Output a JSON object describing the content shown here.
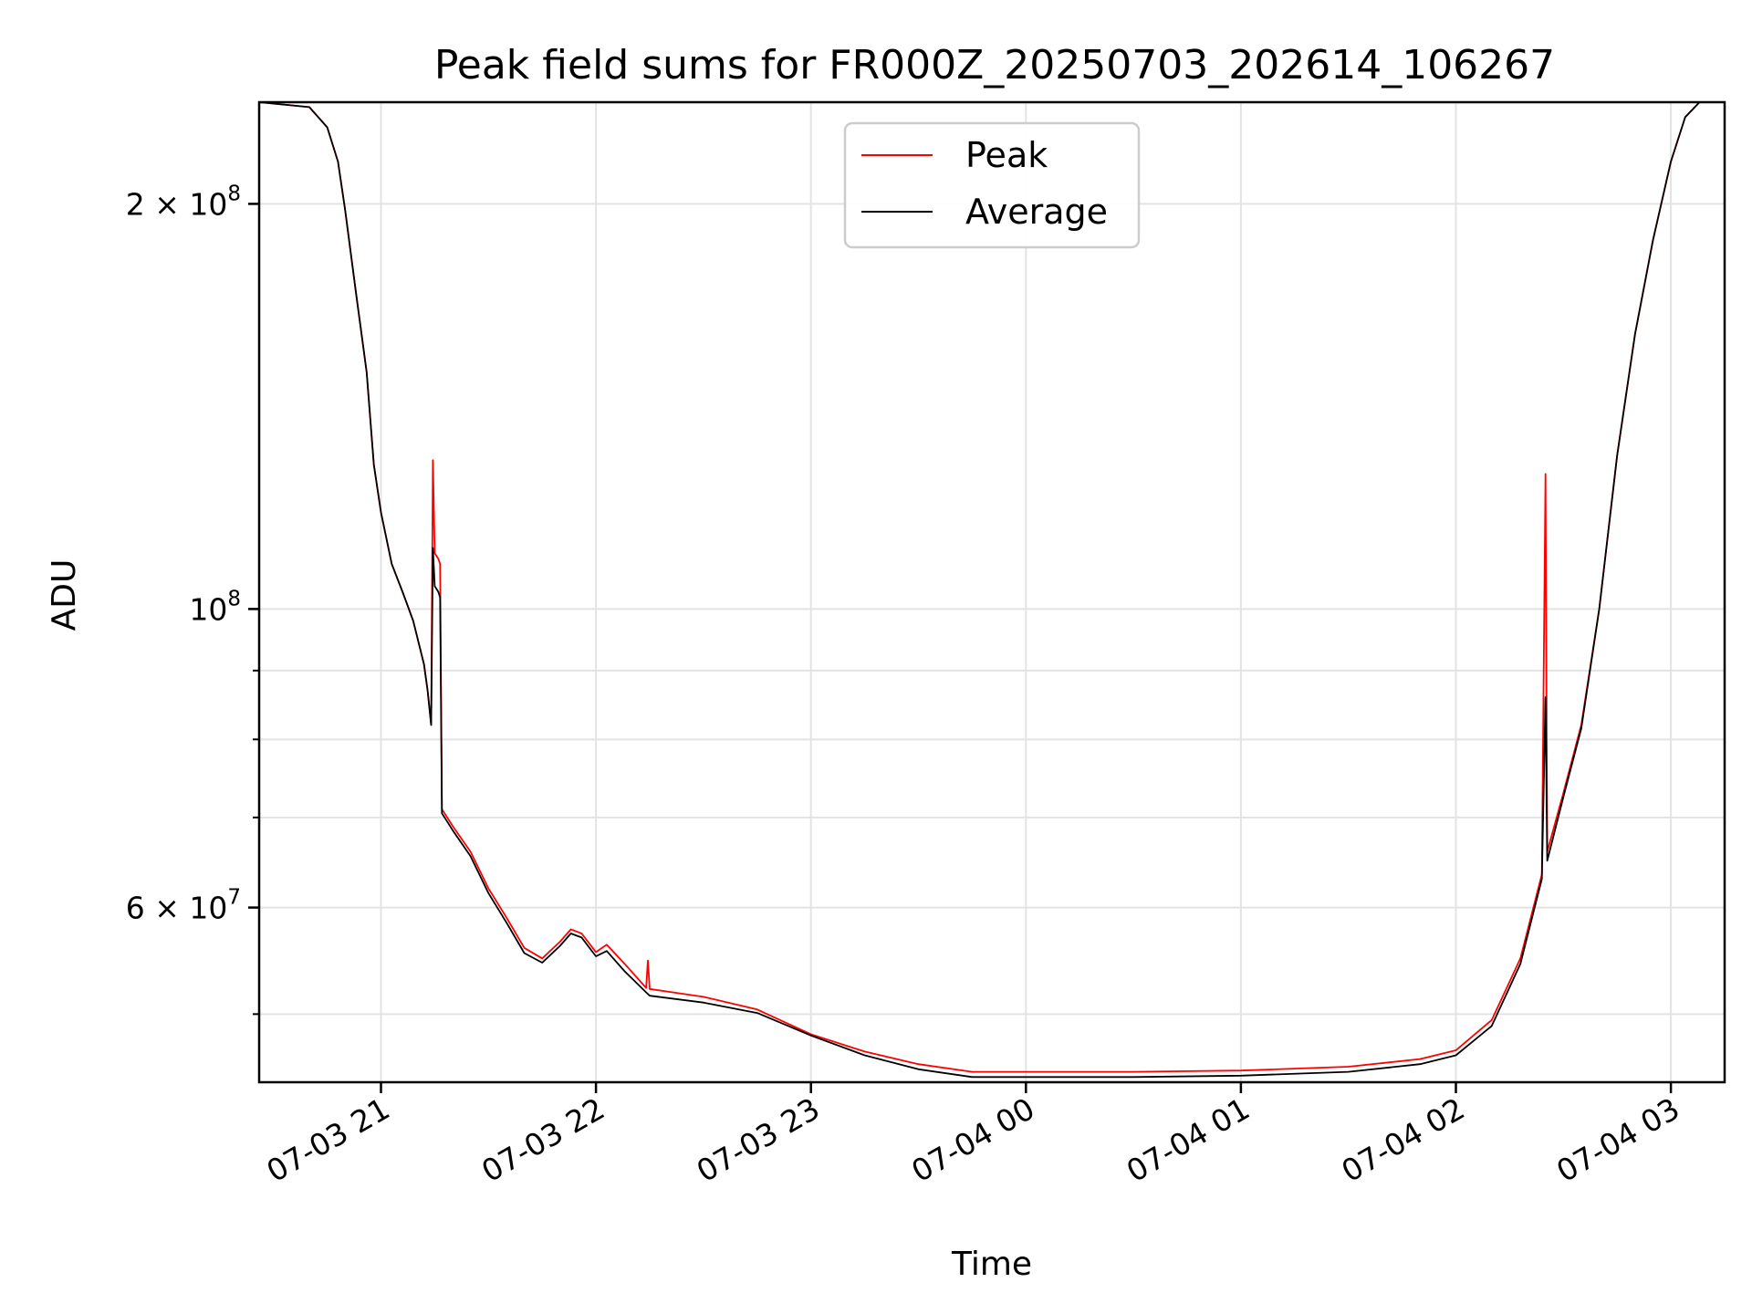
{
  "chart_data": {
    "type": "line",
    "title": "Peak field sums for FR000Z_20250703_202614_106267",
    "xlabel": "Time",
    "ylabel": "ADU",
    "y_scale": "log",
    "xlim": [
      "2025-07-03 20:26",
      "2025-07-04 03:15"
    ],
    "ylim": [
      44500000,
      238000000
    ],
    "grid": true,
    "legend_position": "top-center",
    "x_ticks": [
      {
        "value": "2025-07-03 21:00",
        "label": "07-03 21"
      },
      {
        "value": "2025-07-03 22:00",
        "label": "07-03 22"
      },
      {
        "value": "2025-07-03 23:00",
        "label": "07-03 23"
      },
      {
        "value": "2025-07-04 00:00",
        "label": "07-04 00"
      },
      {
        "value": "2025-07-04 01:00",
        "label": "07-04 01"
      },
      {
        "value": "2025-07-04 02:00",
        "label": "07-04 02"
      },
      {
        "value": "2025-07-04 03:00",
        "label": "07-04 03"
      }
    ],
    "y_ticks_major": [
      {
        "value": 200000000,
        "base": "2 × 10",
        "exp": "8"
      },
      {
        "value": 100000000,
        "base": "10",
        "exp": "8"
      },
      {
        "value": 60000000,
        "base": "6 × 10",
        "exp": "7"
      }
    ],
    "y_ticks_minor": [
      50000000,
      70000000,
      80000000,
      90000000
    ],
    "series": [
      {
        "name": "Peak",
        "color": "#ff0000",
        "points": [
          [
            "2025-07-03 20:26",
            238000000
          ],
          [
            "2025-07-03 20:40",
            236000000
          ],
          [
            "2025-07-03 20:45",
            228000000
          ],
          [
            "2025-07-03 20:48",
            215000000
          ],
          [
            "2025-07-03 20:50",
            198000000
          ],
          [
            "2025-07-03 20:53",
            172000000
          ],
          [
            "2025-07-03 20:56",
            150000000
          ],
          [
            "2025-07-03 20:58",
            128000000
          ],
          [
            "2025-07-03 21:00",
            118000000
          ],
          [
            "2025-07-03 21:03",
            108000000
          ],
          [
            "2025-07-03 21:06",
            103000000
          ],
          [
            "2025-07-03 21:09",
            98000000
          ],
          [
            "2025-07-03 21:12",
            91000000
          ],
          [
            "2025-07-03 21:13",
            87000000
          ],
          [
            "2025-07-03 21:14",
            82000000
          ],
          [
            "2025-07-03 21:14.5",
            129000000
          ],
          [
            "2025-07-03 21:15",
            110000000
          ],
          [
            "2025-07-03 21:16",
            109000000
          ],
          [
            "2025-07-03 21:16.5",
            108000000
          ],
          [
            "2025-07-03 21:17",
            71000000
          ],
          [
            "2025-07-03 21:20",
            69000000
          ],
          [
            "2025-07-03 21:25",
            66000000
          ],
          [
            "2025-07-03 21:30",
            62000000
          ],
          [
            "2025-07-03 21:35",
            59000000
          ],
          [
            "2025-07-03 21:40",
            56000000
          ],
          [
            "2025-07-03 21:45",
            55000000
          ],
          [
            "2025-07-03 21:50",
            56600000
          ],
          [
            "2025-07-03 21:53",
            57800000
          ],
          [
            "2025-07-03 21:56",
            57400000
          ],
          [
            "2025-07-03 22:00",
            55600000
          ],
          [
            "2025-07-03 22:03",
            56300000
          ],
          [
            "2025-07-03 22:08",
            54500000
          ],
          [
            "2025-07-03 22:14",
            52300000
          ],
          [
            "2025-07-03 22:14.5",
            54800000
          ],
          [
            "2025-07-03 22:15",
            52200000
          ],
          [
            "2025-07-03 22:30",
            51500000
          ],
          [
            "2025-07-03 22:45",
            50400000
          ],
          [
            "2025-07-03 23:00",
            48300000
          ],
          [
            "2025-07-03 23:15",
            46900000
          ],
          [
            "2025-07-03 23:30",
            45900000
          ],
          [
            "2025-07-03 23:45",
            45300000
          ],
          [
            "2025-07-04 00:00",
            45300000
          ],
          [
            "2025-07-04 00:30",
            45300000
          ],
          [
            "2025-07-04 01:00",
            45400000
          ],
          [
            "2025-07-04 01:30",
            45700000
          ],
          [
            "2025-07-04 01:50",
            46300000
          ],
          [
            "2025-07-04 02:00",
            47000000
          ],
          [
            "2025-07-04 02:10",
            49500000
          ],
          [
            "2025-07-04 02:18",
            55000000
          ],
          [
            "2025-07-04 02:24",
            63500000
          ],
          [
            "2025-07-04 02:25",
            126000000
          ],
          [
            "2025-07-04 02:25.5",
            66000000
          ],
          [
            "2025-07-04 02:30",
            73000000
          ],
          [
            "2025-07-04 02:35",
            82000000
          ],
          [
            "2025-07-04 02:40",
            100000000
          ],
          [
            "2025-07-04 02:45",
            130000000
          ],
          [
            "2025-07-04 02:50",
            160000000
          ],
          [
            "2025-07-04 02:55",
            188000000
          ],
          [
            "2025-07-04 03:00",
            215000000
          ],
          [
            "2025-07-04 03:04",
            232000000
          ],
          [
            "2025-07-04 03:08",
            238000000
          ],
          [
            "2025-07-04 03:15",
            238000000
          ]
        ]
      },
      {
        "name": "Average",
        "color": "#000000",
        "points": [
          [
            "2025-07-03 20:26",
            238000000
          ],
          [
            "2025-07-03 20:40",
            236000000
          ],
          [
            "2025-07-03 20:45",
            228000000
          ],
          [
            "2025-07-03 20:48",
            215000000
          ],
          [
            "2025-07-03 20:50",
            198000000
          ],
          [
            "2025-07-03 20:53",
            172000000
          ],
          [
            "2025-07-03 20:56",
            150000000
          ],
          [
            "2025-07-03 20:58",
            128000000
          ],
          [
            "2025-07-03 21:00",
            118000000
          ],
          [
            "2025-07-03 21:03",
            108000000
          ],
          [
            "2025-07-03 21:06",
            103000000
          ],
          [
            "2025-07-03 21:09",
            98000000
          ],
          [
            "2025-07-03 21:12",
            91000000
          ],
          [
            "2025-07-03 21:13",
            87000000
          ],
          [
            "2025-07-03 21:14",
            82000000
          ],
          [
            "2025-07-03 21:14.5",
            111000000
          ],
          [
            "2025-07-03 21:15",
            104000000
          ],
          [
            "2025-07-03 21:16",
            103000000
          ],
          [
            "2025-07-03 21:16.5",
            102000000
          ],
          [
            "2025-07-03 21:17",
            70500000
          ],
          [
            "2025-07-03 21:20",
            68500000
          ],
          [
            "2025-07-03 21:25",
            65500000
          ],
          [
            "2025-07-03 21:30",
            61500000
          ],
          [
            "2025-07-03 21:35",
            58500000
          ],
          [
            "2025-07-03 21:40",
            55500000
          ],
          [
            "2025-07-03 21:45",
            54600000
          ],
          [
            "2025-07-03 21:50",
            56200000
          ],
          [
            "2025-07-03 21:53",
            57400000
          ],
          [
            "2025-07-03 21:56",
            57000000
          ],
          [
            "2025-07-03 22:00",
            55200000
          ],
          [
            "2025-07-03 22:03",
            55700000
          ],
          [
            "2025-07-03 22:08",
            53800000
          ],
          [
            "2025-07-03 22:14",
            51900000
          ],
          [
            "2025-07-03 22:15",
            51600000
          ],
          [
            "2025-07-03 22:30",
            51000000
          ],
          [
            "2025-07-03 22:45",
            50100000
          ],
          [
            "2025-07-03 23:00",
            48200000
          ],
          [
            "2025-07-03 23:15",
            46600000
          ],
          [
            "2025-07-03 23:30",
            45500000
          ],
          [
            "2025-07-03 23:45",
            44900000
          ],
          [
            "2025-07-04 00:00",
            44900000
          ],
          [
            "2025-07-04 00:30",
            44900000
          ],
          [
            "2025-07-04 01:00",
            45000000
          ],
          [
            "2025-07-04 01:30",
            45300000
          ],
          [
            "2025-07-04 01:50",
            45900000
          ],
          [
            "2025-07-04 02:00",
            46600000
          ],
          [
            "2025-07-04 02:10",
            49000000
          ],
          [
            "2025-07-04 02:18",
            54500000
          ],
          [
            "2025-07-04 02:24",
            63000000
          ],
          [
            "2025-07-04 02:25",
            86000000
          ],
          [
            "2025-07-04 02:25.5",
            65000000
          ],
          [
            "2025-07-04 02:30",
            72500000
          ],
          [
            "2025-07-04 02:35",
            81500000
          ],
          [
            "2025-07-04 02:40",
            100000000
          ],
          [
            "2025-07-04 02:45",
            130000000
          ],
          [
            "2025-07-04 02:50",
            160000000
          ],
          [
            "2025-07-04 02:55",
            188000000
          ],
          [
            "2025-07-04 03:00",
            215000000
          ],
          [
            "2025-07-04 03:04",
            232000000
          ],
          [
            "2025-07-04 03:08",
            238000000
          ],
          [
            "2025-07-04 03:15",
            238000000
          ]
        ]
      }
    ]
  }
}
